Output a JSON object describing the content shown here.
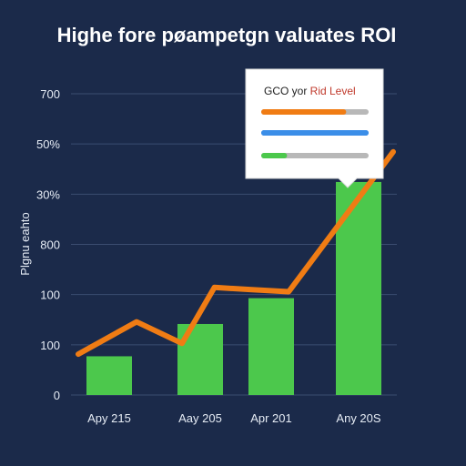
{
  "chart_data": {
    "type": "bar",
    "title": "Highe fore pøampetgn valuates ROI",
    "ylabel": "Plgnu eahto",
    "xlabel": "",
    "y_ticks": [
      "0",
      "100",
      "100",
      "800",
      "30%",
      "50%",
      "700"
    ],
    "categories": [
      "Apy 215",
      "Aay 205",
      "Apr 201",
      "Any 20S"
    ],
    "ylim": [
      0,
      700
    ],
    "grid": true,
    "series": [
      {
        "type": "bar",
        "color": "#4cc84c",
        "values": [
          90,
          165,
          225,
          495
        ]
      },
      {
        "type": "line",
        "color": "#f07c14",
        "x": [
          0,
          0.3,
          0.8,
          1.2,
          1.7,
          2.2,
          3.2
        ],
        "values": [
          95,
          170,
          120,
          250,
          245,
          240,
          565
        ]
      }
    ],
    "legend": {
      "placement": "top-right",
      "title_parts": [
        {
          "text": "GCO yor ",
          "color": "#222222"
        },
        {
          "text": "Rid Level",
          "color": "#c0392b"
        }
      ],
      "entries": [
        {
          "color": "#f07c14",
          "tail": "#b8b8b8",
          "fraction": 0.78
        },
        {
          "color": "#3b8ee8",
          "tail": "#3b8ee8",
          "fraction": 1.0
        },
        {
          "color": "#4cc84c",
          "tail": "#b8b8b8",
          "fraction": 0.2
        }
      ]
    }
  }
}
